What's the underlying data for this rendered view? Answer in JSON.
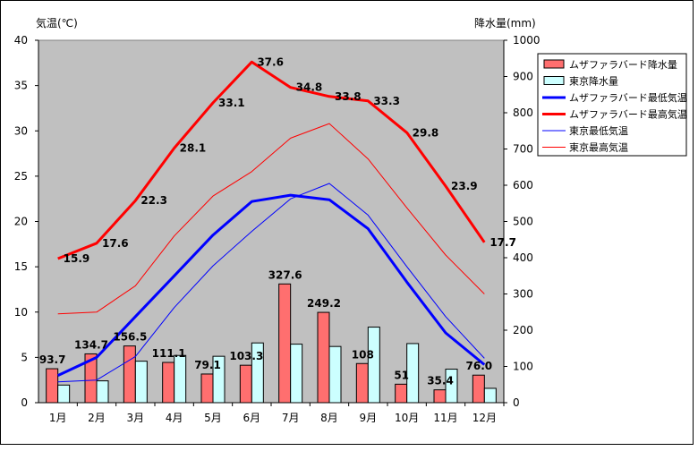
{
  "chart_data": {
    "type": "bar+line",
    "categories": [
      "1月",
      "2月",
      "3月",
      "4月",
      "5月",
      "6月",
      "7月",
      "8月",
      "9月",
      "10月",
      "11月",
      "12月"
    ],
    "left_axis": {
      "label": "気温(℃)",
      "ylim": [
        0,
        40
      ],
      "ticks": [
        0,
        5,
        10,
        15,
        20,
        25,
        30,
        35,
        40
      ]
    },
    "right_axis": {
      "label": "降水量(mm)",
      "ylim": [
        0,
        1000
      ],
      "ticks": [
        0,
        100,
        200,
        300,
        400,
        500,
        600,
        700,
        800,
        900,
        1000
      ]
    },
    "series": [
      {
        "name": "ムザファラバード降水量",
        "kind": "bar",
        "axis": "right",
        "color": "#ff6f6f",
        "values": [
          93.7,
          134.7,
          156.5,
          111.1,
          79.1,
          103.3,
          327.6,
          249.2,
          108,
          51,
          35.4,
          76.0
        ],
        "labels": [
          "93.7",
          "134.7",
          "156.5",
          "111.1",
          "79.1",
          "103.3",
          "327.6",
          "249.2",
          "108",
          "51",
          "35.4",
          "76.0"
        ]
      },
      {
        "name": "東京降水量",
        "kind": "bar",
        "axis": "right",
        "color": "#ccffff",
        "values": [
          48.6,
          60.2,
          114.5,
          130.3,
          128.0,
          164.9,
          161.5,
          155.1,
          208.5,
          163.1,
          92.5,
          39.6
        ]
      },
      {
        "name": "ムザファラバード最低気温",
        "kind": "line",
        "axis": "left",
        "color": "#0000ff",
        "width": 3,
        "values": [
          3.0,
          5.0,
          9.5,
          14.0,
          18.5,
          22.2,
          22.9,
          22.4,
          19.2,
          13.3,
          7.7,
          4.2
        ]
      },
      {
        "name": "ムザファラバード最高気温",
        "kind": "line",
        "axis": "left",
        "color": "#ff0000",
        "width": 3,
        "values": [
          15.9,
          17.6,
          22.3,
          28.1,
          33.1,
          37.6,
          34.8,
          33.8,
          33.3,
          29.8,
          23.9,
          17.7
        ],
        "labels": [
          "15.9",
          "17.6",
          "22.3",
          "28.1",
          "33.1",
          "37.6",
          "34.8",
          "33.8",
          "33.3",
          "29.8",
          "23.9",
          "17.7"
        ]
      },
      {
        "name": "東京最低気温",
        "kind": "line",
        "axis": "left",
        "color": "#0000ff",
        "width": 1,
        "values": [
          2.3,
          2.5,
          5.1,
          10.5,
          15.1,
          18.9,
          22.5,
          24.2,
          20.7,
          15.0,
          9.5,
          4.9
        ]
      },
      {
        "name": "東京最高気温",
        "kind": "line",
        "axis": "left",
        "color": "#ff0000",
        "width": 1,
        "values": [
          9.8,
          10.0,
          12.9,
          18.4,
          22.8,
          25.5,
          29.2,
          30.8,
          26.9,
          21.5,
          16.3,
          12.0
        ]
      }
    ],
    "plot_background": "#c0c0c0",
    "legend_position": "right"
  }
}
